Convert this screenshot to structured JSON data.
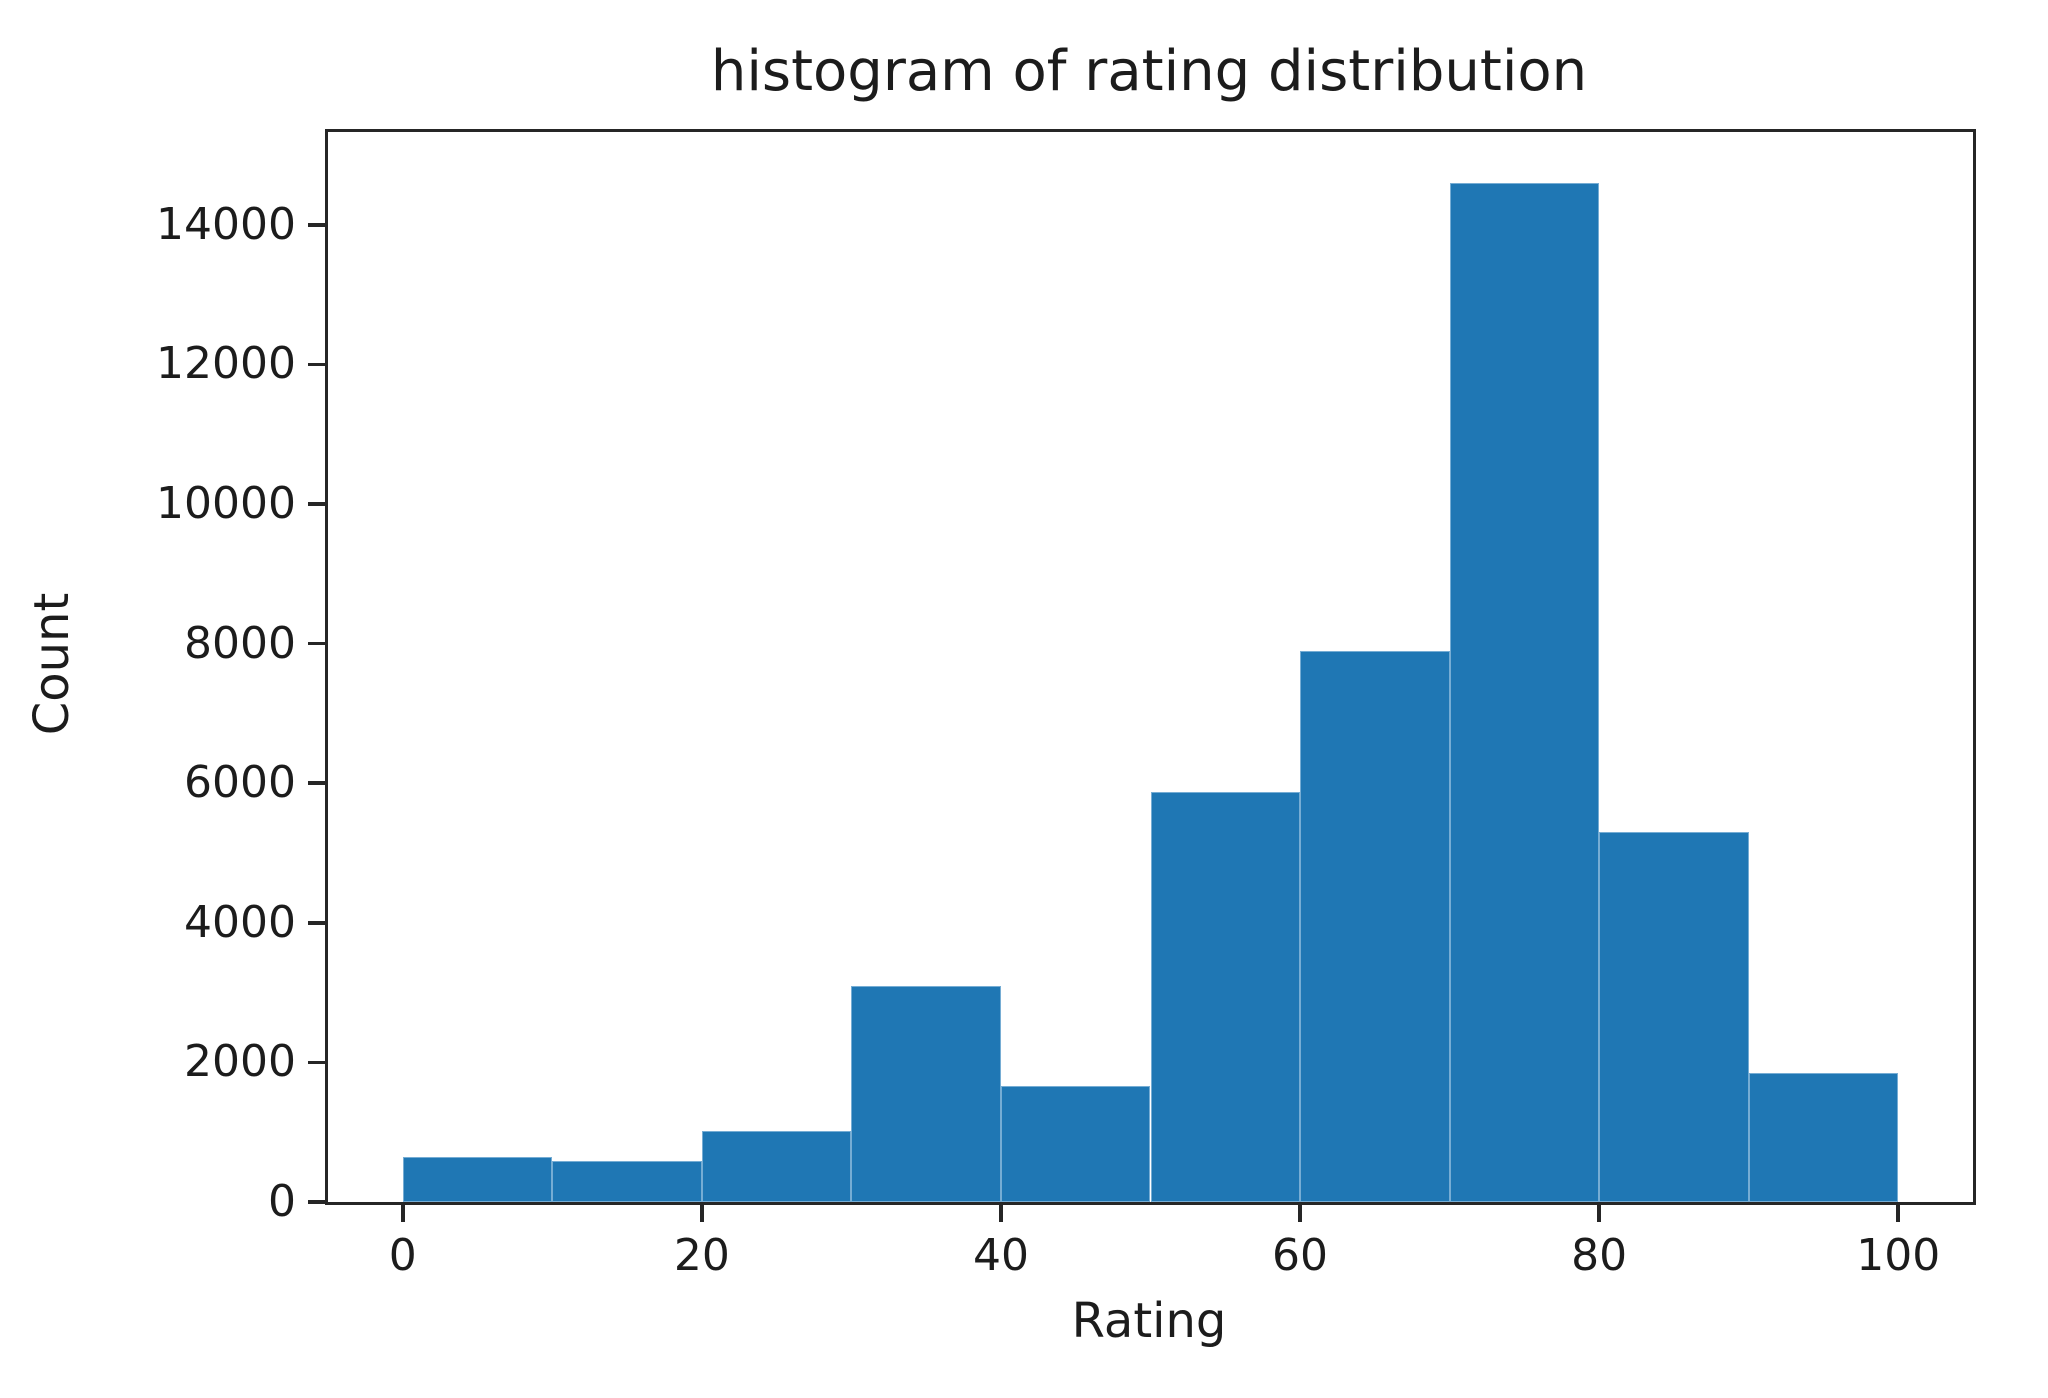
{
  "chart_data": {
    "type": "bar",
    "subtype": "histogram",
    "title": "histogram of rating distribution",
    "xlabel": "Rating",
    "ylabel": "Count",
    "bin_edges": [
      0,
      10,
      20,
      30,
      40,
      50,
      60,
      70,
      80,
      90,
      100
    ],
    "values": [
      650,
      590,
      1020,
      3100,
      1660,
      5870,
      7900,
      14600,
      5300,
      1850
    ],
    "categories": [
      "0-10",
      "10-20",
      "20-30",
      "30-40",
      "40-50",
      "50-60",
      "60-70",
      "70-80",
      "80-90",
      "90-100"
    ],
    "xticks": [
      0,
      20,
      40,
      60,
      80,
      100
    ],
    "yticks": [
      0,
      2000,
      4000,
      6000,
      8000,
      10000,
      12000,
      14000
    ],
    "xlim": [
      -5,
      105
    ],
    "ylim": [
      0,
      15330
    ],
    "bar_color": "#1f77b4",
    "spine_color": "#262626",
    "text_color": "#1c1c1c",
    "grid": false,
    "legend": null
  }
}
